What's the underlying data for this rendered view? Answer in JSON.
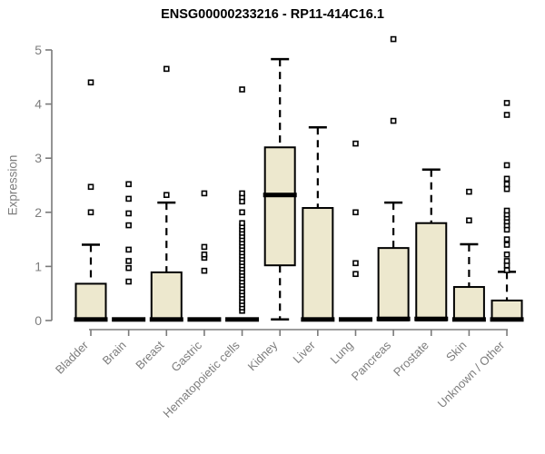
{
  "chart_data": {
    "type": "boxplot",
    "title": "ENSG00000233216 - RP11-414C16.1",
    "ylabel": "Expression",
    "xlabel": "",
    "ylim": [
      0,
      5
    ],
    "yticks": [
      0,
      1,
      2,
      3,
      4,
      5
    ],
    "grid": false,
    "legend": "none",
    "categories": [
      "Bladder",
      "Brain",
      "Breast",
      "Gastric",
      "Hematopoietic cells",
      "Kidney",
      "Liver",
      "Lung",
      "Pancreas",
      "Prostate",
      "Skin",
      "Unknown / Other"
    ],
    "boxes": [
      {
        "category": "Bladder",
        "q1": 0,
        "median": 0.02,
        "q3": 0.68,
        "whisker_low": 0,
        "whisker_high": 1.4,
        "outliers": [
          2.0,
          2.47,
          4.4
        ]
      },
      {
        "category": "Brain",
        "q1": 0,
        "median": 0.02,
        "q3": 0.04,
        "whisker_low": 0,
        "whisker_high": 0.04,
        "outliers": [
          0.72,
          0.97,
          1.1,
          1.31,
          1.76,
          1.98,
          2.25,
          2.52
        ]
      },
      {
        "category": "Breast",
        "q1": 0,
        "median": 0.02,
        "q3": 0.89,
        "whisker_low": 0,
        "whisker_high": 2.18,
        "outliers": [
          2.32,
          4.65
        ]
      },
      {
        "category": "Gastric",
        "q1": 0,
        "median": 0.02,
        "q3": 0.04,
        "whisker_low": 0,
        "whisker_high": 0.04,
        "outliers": [
          0.92,
          1.16,
          1.22,
          1.36,
          2.35
        ]
      },
      {
        "category": "Hematopoietic cells",
        "q1": 0,
        "median": 0.02,
        "q3": 0.04,
        "whisker_low": 0,
        "whisker_high": 0.04,
        "outliers": [
          0.18,
          0.24,
          0.3,
          0.36,
          0.42,
          0.48,
          0.54,
          0.6,
          0.66,
          0.72,
          0.78,
          0.84,
          0.9,
          0.96,
          1.02,
          1.08,
          1.14,
          1.2,
          1.26,
          1.32,
          1.38,
          1.44,
          1.5,
          1.56,
          1.62,
          1.68,
          1.74,
          1.8,
          2.0,
          2.2,
          2.28,
          2.35,
          4.27
        ]
      },
      {
        "category": "Kidney",
        "q1": 1.02,
        "median": 2.32,
        "q3": 3.2,
        "whisker_low": 0.02,
        "whisker_high": 4.83,
        "outliers": []
      },
      {
        "category": "Liver",
        "q1": 0,
        "median": 0.02,
        "q3": 2.08,
        "whisker_low": 0,
        "whisker_high": 3.57,
        "outliers": []
      },
      {
        "category": "Lung",
        "q1": 0,
        "median": 0.02,
        "q3": 0.04,
        "whisker_low": 0,
        "whisker_high": 0.04,
        "outliers": [
          0.86,
          1.06,
          2.0,
          3.27
        ]
      },
      {
        "category": "Pancreas",
        "q1": 0,
        "median": 0.03,
        "q3": 1.34,
        "whisker_low": 0,
        "whisker_high": 2.18,
        "outliers": [
          3.69,
          5.2
        ]
      },
      {
        "category": "Prostate",
        "q1": 0,
        "median": 0.03,
        "q3": 1.8,
        "whisker_low": 0,
        "whisker_high": 2.79,
        "outliers": []
      },
      {
        "category": "Skin",
        "q1": 0,
        "median": 0.02,
        "q3": 0.62,
        "whisker_low": 0,
        "whisker_high": 1.41,
        "outliers": [
          1.85,
          2.38
        ]
      },
      {
        "category": "Unknown / Other",
        "q1": 0,
        "median": 0.02,
        "q3": 0.37,
        "whisker_low": 0,
        "whisker_high": 0.9,
        "outliers": [
          0.93,
          1.02,
          1.1,
          1.22,
          1.4,
          1.5,
          1.68,
          1.76,
          1.83,
          1.9,
          1.96,
          2.03,
          2.43,
          2.52,
          2.62,
          2.87,
          3.8,
          4.02
        ]
      }
    ],
    "colors": {
      "box_fill": "#ede8ce",
      "box_border": "#000000",
      "median": "#000000",
      "whisker": "#000000",
      "outlier_stroke": "#000000",
      "outlier_fill": "#ffffff",
      "axis": "#7a7a7a",
      "tick_label": "#7d7d7d",
      "title": "#000000"
    }
  }
}
